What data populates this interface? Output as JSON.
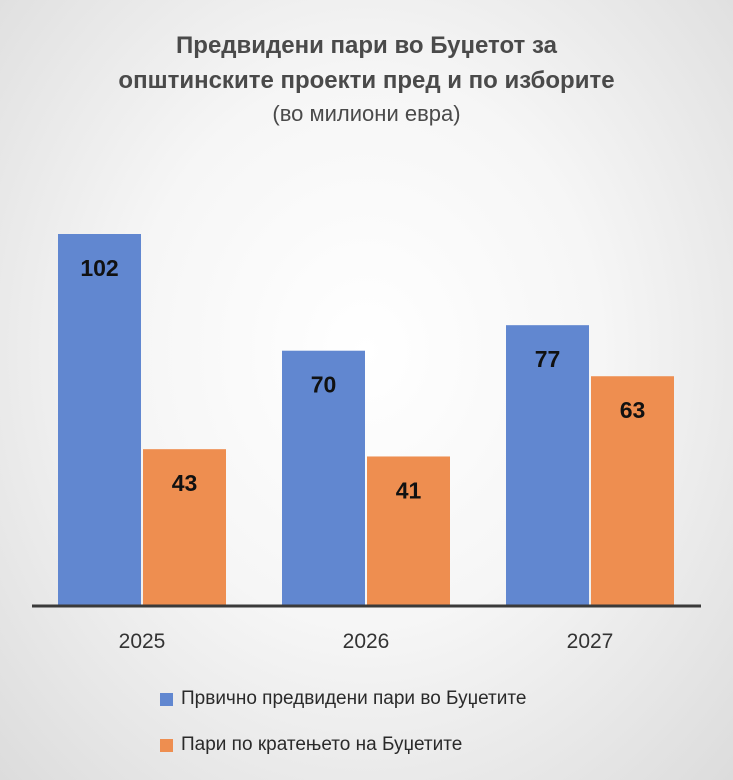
{
  "chart_data": {
    "type": "bar",
    "title_lines": [
      "Предвидени пари во Буџетот за",
      "општинските проекти пред и по изборите"
    ],
    "subtitle": "(во милиони евра)",
    "categories": [
      "2025",
      "2026",
      "2027"
    ],
    "series": [
      {
        "name": "Првично предвидени пари во Буџетите",
        "values": [
          102,
          70,
          77
        ],
        "color": "#6187d0"
      },
      {
        "name": "Пари по кратењето на Буџетите",
        "values": [
          43,
          41,
          63
        ],
        "color": "#ee8e50"
      }
    ],
    "ylim": [
      0,
      102
    ],
    "grid": false,
    "legend_position": "bottom"
  }
}
